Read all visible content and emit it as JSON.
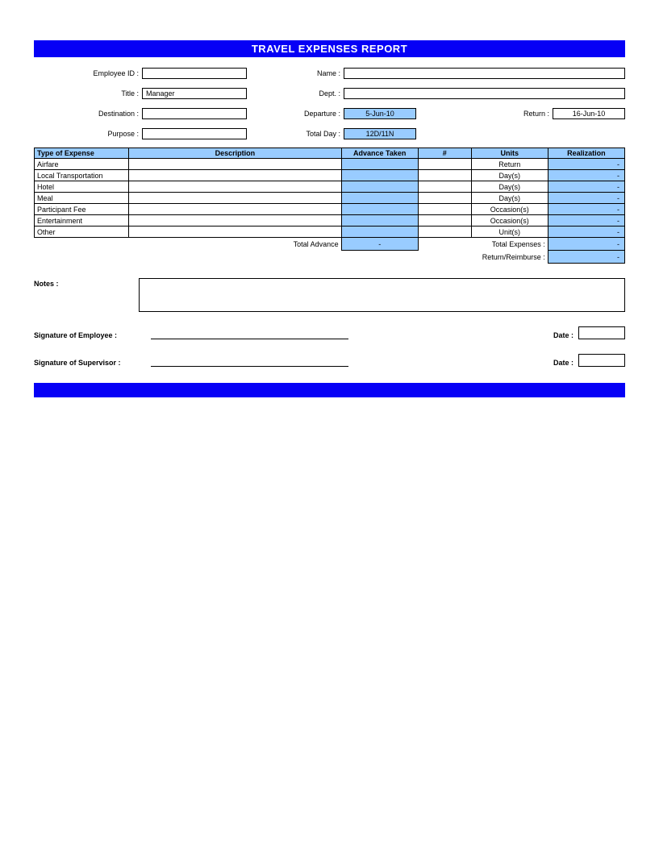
{
  "title": "TRAVEL EXPENSES REPORT",
  "colors": {
    "bar": "#0600f6",
    "cell_highlight": "#99ccff",
    "border": "#000000",
    "background": "#ffffff"
  },
  "header": {
    "labels": {
      "employee_id": "Employee ID :",
      "name": "Name :",
      "title": "Title :",
      "dept": "Dept. :",
      "destination": "Destination :",
      "departure": "Departure :",
      "return": "Return :",
      "purpose": "Purpose :",
      "total_day": "Total Day :"
    },
    "values": {
      "employee_id": "",
      "name": "",
      "title": "Manager",
      "dept": "",
      "destination": "",
      "departure": "5-Jun-10",
      "return": "16-Jun-10",
      "purpose": "",
      "total_day": "12D/11N"
    }
  },
  "table": {
    "columns": [
      "Type of Expense",
      "Description",
      "Advance Taken",
      "#",
      "Units",
      "Realization"
    ],
    "rows": [
      {
        "type": "Airfare",
        "description": "",
        "advance": "",
        "num": "",
        "units": "Return",
        "realization": "-"
      },
      {
        "type": "Local Transportation",
        "description": "",
        "advance": "",
        "num": "",
        "units": "Day(s)",
        "realization": "-"
      },
      {
        "type": "Hotel",
        "description": "",
        "advance": "",
        "num": "",
        "units": "Day(s)",
        "realization": "-"
      },
      {
        "type": "Meal",
        "description": "",
        "advance": "",
        "num": "",
        "units": "Day(s)",
        "realization": "-"
      },
      {
        "type": "Participant Fee",
        "description": "",
        "advance": "",
        "num": "",
        "units": "Occasion(s)",
        "realization": "-"
      },
      {
        "type": "Entertainment",
        "description": "",
        "advance": "",
        "num": "",
        "units": "Occasion(s)",
        "realization": "-"
      },
      {
        "type": "Other",
        "description": "",
        "advance": "",
        "num": "",
        "units": "Unit(s)",
        "realization": "-"
      }
    ],
    "summary": {
      "total_advance_label": "Total Advance",
      "total_advance_value": "-",
      "total_expenses_label": "Total Expenses :",
      "total_expenses_value": "-",
      "return_reimburse_label": "Return/Reimburse :",
      "return_reimburse_value": "-"
    },
    "col_widths_pct": [
      16,
      28,
      13,
      9,
      13,
      13
    ]
  },
  "notes": {
    "label": "Notes :",
    "value": ""
  },
  "signatures": {
    "employee_label": "Signature of Employee :",
    "supervisor_label": "Signature of Supervisor :",
    "date_label": "Date :",
    "employee_date": "",
    "supervisor_date": ""
  }
}
